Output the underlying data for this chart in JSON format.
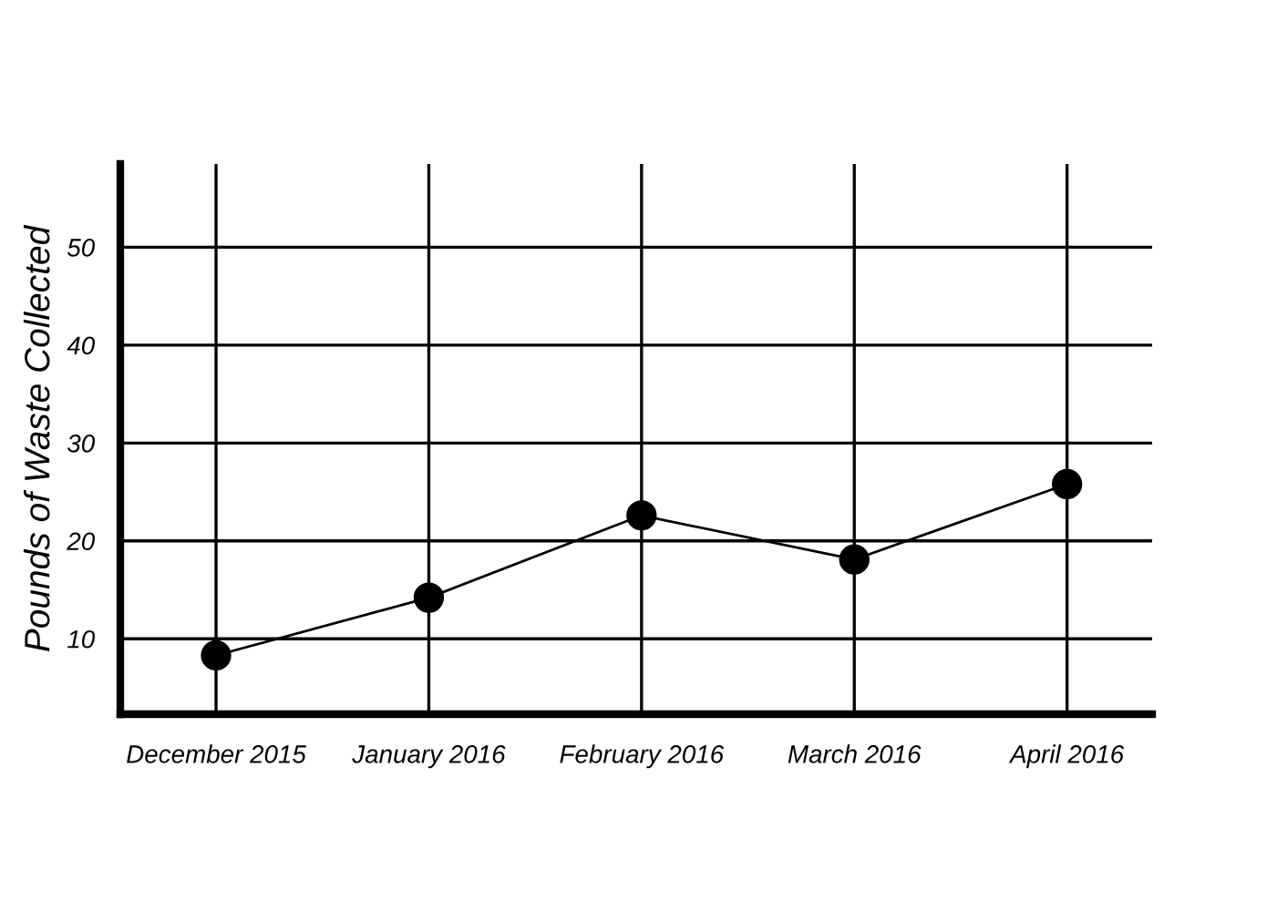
{
  "chart_data": {
    "type": "line",
    "ylabel": "Pounds of Waste Collected",
    "categories": [
      "December 2015",
      "January 2016",
      "February 2016",
      "March 2016",
      "April 2016"
    ],
    "series": [
      {
        "color": "#000000",
        "values": [
          8.3,
          14.2,
          22.6,
          18.1,
          25.8
        ]
      }
    ],
    "ylim": [
      2.3,
      58.5
    ],
    "yticks": [
      10,
      20,
      30,
      40,
      50
    ],
    "grid": true,
    "marker": "circle",
    "line_style": "solid"
  }
}
